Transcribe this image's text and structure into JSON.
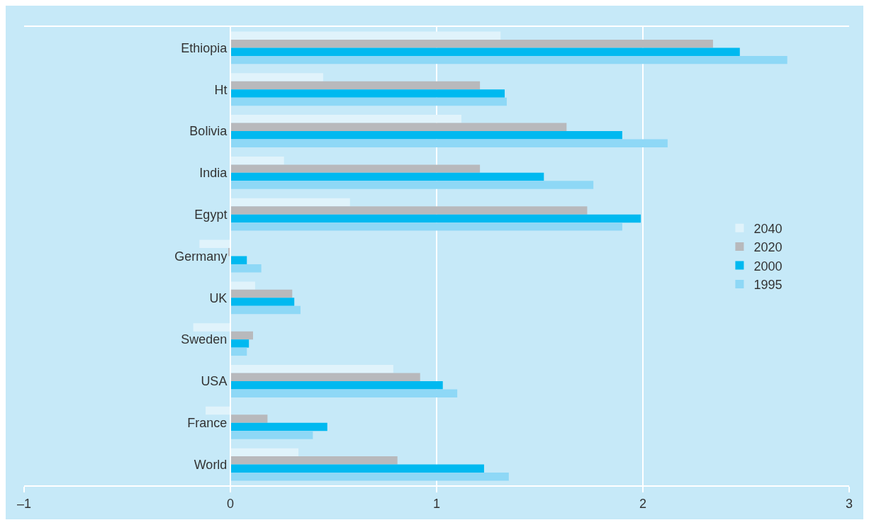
{
  "chart_data": {
    "type": "bar",
    "orientation": "horizontal",
    "categories": [
      "Ethiopia",
      "Ht",
      "Bolivia",
      "India",
      "Egypt",
      "Germany",
      "UK",
      "Sweden",
      "USA",
      "France",
      "World"
    ],
    "series": [
      {
        "name": "2040",
        "color": "#e0f3fb",
        "values": [
          1.31,
          0.45,
          1.12,
          0.26,
          0.58,
          -0.15,
          0.12,
          -0.18,
          0.79,
          -0.12,
          0.33
        ]
      },
      {
        "name": "2020",
        "color": "#b8b9bc",
        "values": [
          2.34,
          1.21,
          1.63,
          1.21,
          1.73,
          -0.01,
          0.3,
          0.11,
          0.92,
          0.18,
          0.81
        ]
      },
      {
        "name": "2000",
        "color": "#00b9f0",
        "values": [
          2.47,
          1.33,
          1.9,
          1.52,
          1.99,
          0.08,
          0.31,
          0.09,
          1.03,
          0.47,
          1.23
        ]
      },
      {
        "name": "1995",
        "color": "#8ed8f6",
        "values": [
          2.7,
          1.34,
          2.12,
          1.76,
          1.9,
          0.15,
          0.34,
          0.08,
          1.1,
          0.4,
          1.35
        ]
      }
    ],
    "xlim": [
      -1,
      3
    ],
    "xticks": [
      {
        "value": -1,
        "label": "–1"
      },
      0,
      1,
      2,
      3
    ],
    "grid": "x",
    "legend": "right"
  }
}
